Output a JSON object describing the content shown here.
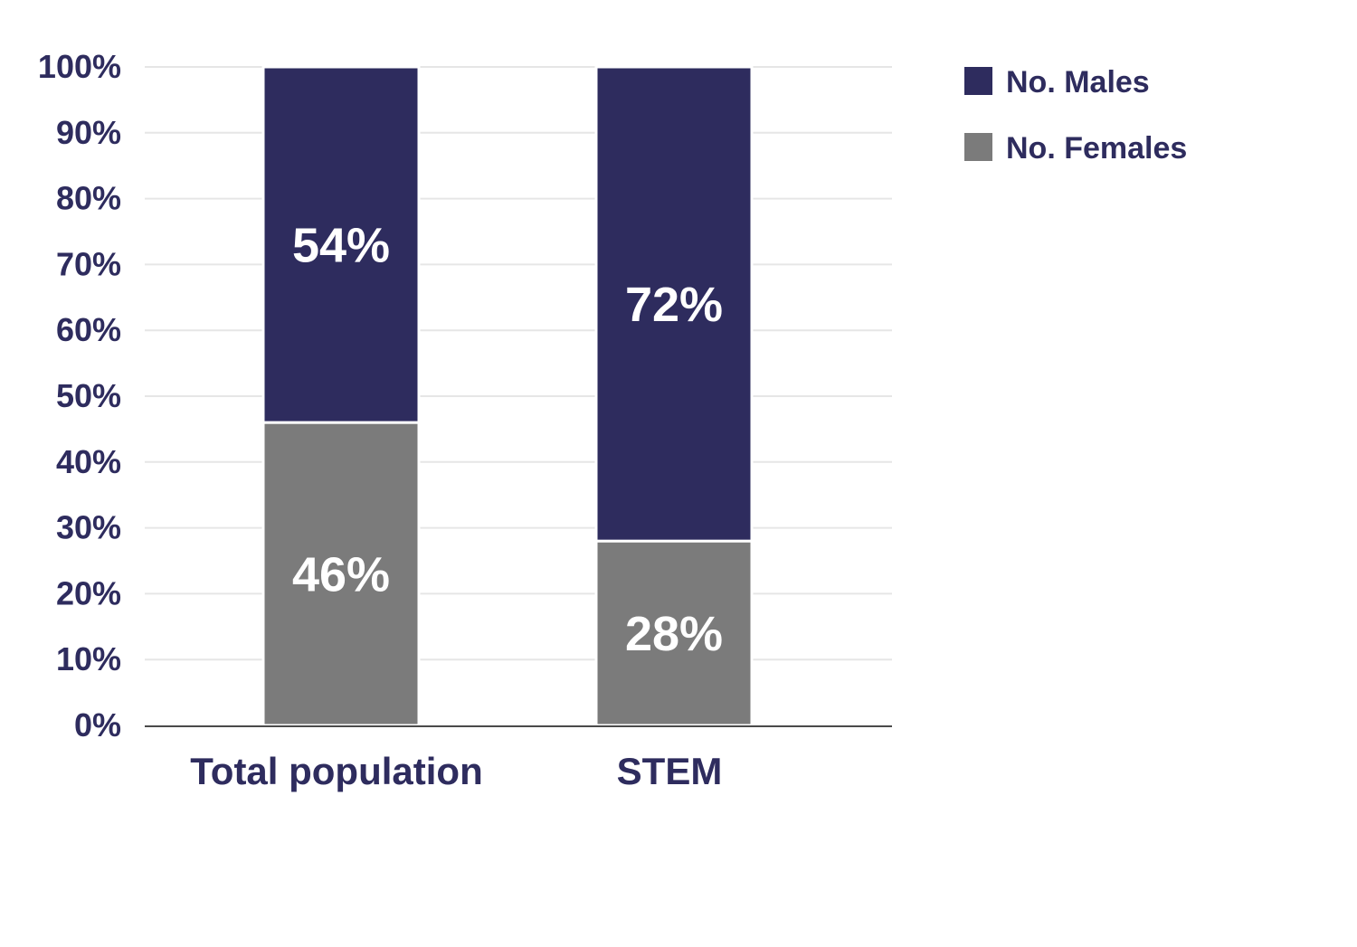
{
  "chart_data": {
    "type": "bar",
    "stacked": true,
    "categories": [
      "Total population",
      "STEM"
    ],
    "series": [
      {
        "name": "No. Females",
        "values": [
          46,
          28
        ],
        "labels": [
          "46%",
          "28%"
        ],
        "color": "#7b7b7b"
      },
      {
        "name": "No. Males",
        "values": [
          54,
          72
        ],
        "labels": [
          "54%",
          "72%"
        ],
        "color": "#2e2c5e"
      }
    ],
    "legend_order": [
      "No. Males",
      "No. Females"
    ],
    "legend_position": "top-right",
    "yticks": [
      {
        "value": 0,
        "label": "0%"
      },
      {
        "value": 10,
        "label": "10%"
      },
      {
        "value": 20,
        "label": "20%"
      },
      {
        "value": 30,
        "label": "30%"
      },
      {
        "value": 40,
        "label": "40%"
      },
      {
        "value": 50,
        "label": "50%"
      },
      {
        "value": 60,
        "label": "60%"
      },
      {
        "value": 70,
        "label": "70%"
      },
      {
        "value": 80,
        "label": "80%"
      },
      {
        "value": 90,
        "label": "90%"
      },
      {
        "value": 100,
        "label": "100%"
      }
    ],
    "ylim": [
      0,
      100
    ],
    "grid": true,
    "title": "",
    "xlabel": "",
    "ylabel": "",
    "colors": {
      "axis_text": "#2e2c5e",
      "gridline": "#e6e6e6",
      "baseline": "#4a4a4a",
      "data_label": "#ffffff"
    }
  }
}
